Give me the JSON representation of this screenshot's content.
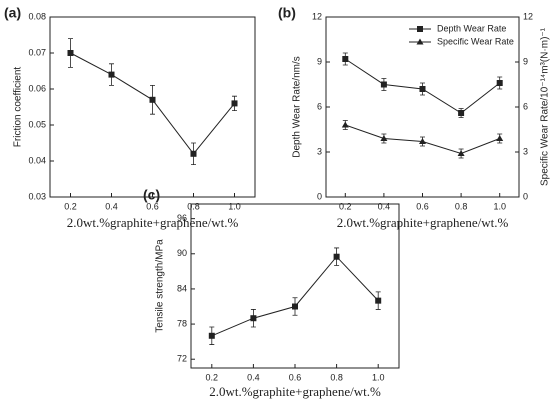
{
  "chart_data": [
    {
      "type": "line",
      "panel_label": "(a)",
      "xlabel": "2.0wt.%graphite+graphene/wt.%",
      "ylabel": "Friction coefficient",
      "x": [
        0.2,
        0.4,
        0.6,
        0.8,
        1.0
      ],
      "xlim": [
        0.1,
        1.1
      ],
      "xticks": [
        0.2,
        0.4,
        0.6,
        0.8,
        {
          "value": 1,
          "label": "1.0"
        }
      ],
      "ylim": [
        0.03,
        0.08
      ],
      "yticks": [
        0.03,
        0.04,
        0.05,
        0.06,
        0.07,
        0.08
      ],
      "series": [
        {
          "color": "#222222",
          "marker": "square",
          "values": [
            0.07,
            0.064,
            0.057,
            0.042,
            0.056
          ],
          "errors": [
            0.004,
            0.003,
            0.004,
            0.003,
            0.002
          ]
        }
      ]
    },
    {
      "type": "line",
      "panel_label": "(b)",
      "xlabel": "2.0wt.%graphite+graphene/wt.%",
      "ylabel": "Depth Wear Rate/nm/s",
      "y2label": "Specific Wear Rate/10⁻¹⁴m³(N·m)⁻¹",
      "x": [
        0.2,
        0.4,
        0.6,
        0.8,
        1.0
      ],
      "xlim": [
        0.1,
        1.1
      ],
      "xticks": [
        0.2,
        0.4,
        0.6,
        0.8,
        {
          "value": 1,
          "label": "1.0"
        }
      ],
      "ylim": [
        0,
        12
      ],
      "yticks": [
        0,
        3,
        6,
        9,
        12
      ],
      "y2lim": [
        0,
        12
      ],
      "y2ticks": [
        0,
        3,
        6,
        9,
        12
      ],
      "legend": "upper right",
      "series": [
        {
          "name": "Depth Wear Rate",
          "color": "#222222",
          "marker": "square",
          "values": [
            9.2,
            7.5,
            7.2,
            5.6,
            7.6
          ],
          "errors": [
            0.4,
            0.4,
            0.4,
            0.3,
            0.4
          ]
        },
        {
          "name": "Specific Wear Rate",
          "color": "#222222",
          "marker": "triangle",
          "axis": "y2",
          "values": [
            4.8,
            3.9,
            3.7,
            2.9,
            3.9
          ],
          "errors": [
            0.3,
            0.3,
            0.3,
            0.3,
            0.3
          ]
        }
      ]
    },
    {
      "type": "line",
      "panel_label": "(c)",
      "xlabel": "2.0wt.%graphite+graphene/wt.%",
      "ylabel": "Tensile strength/MPa",
      "x": [
        0.2,
        0.4,
        0.6,
        0.8,
        1.0
      ],
      "xlim": [
        0.1,
        1.1
      ],
      "xticks": [
        0.2,
        0.4,
        0.6,
        0.8,
        {
          "value": 1,
          "label": "1.0"
        }
      ],
      "ylim": [
        70.5,
        98.5
      ],
      "yticks": [
        72,
        78,
        84,
        90,
        96
      ],
      "series": [
        {
          "color": "#222222",
          "marker": "square",
          "values": [
            76,
            79,
            81,
            89.5,
            82
          ],
          "errors": [
            1.5,
            1.5,
            1.5,
            1.5,
            1.5
          ]
        }
      ]
    }
  ]
}
